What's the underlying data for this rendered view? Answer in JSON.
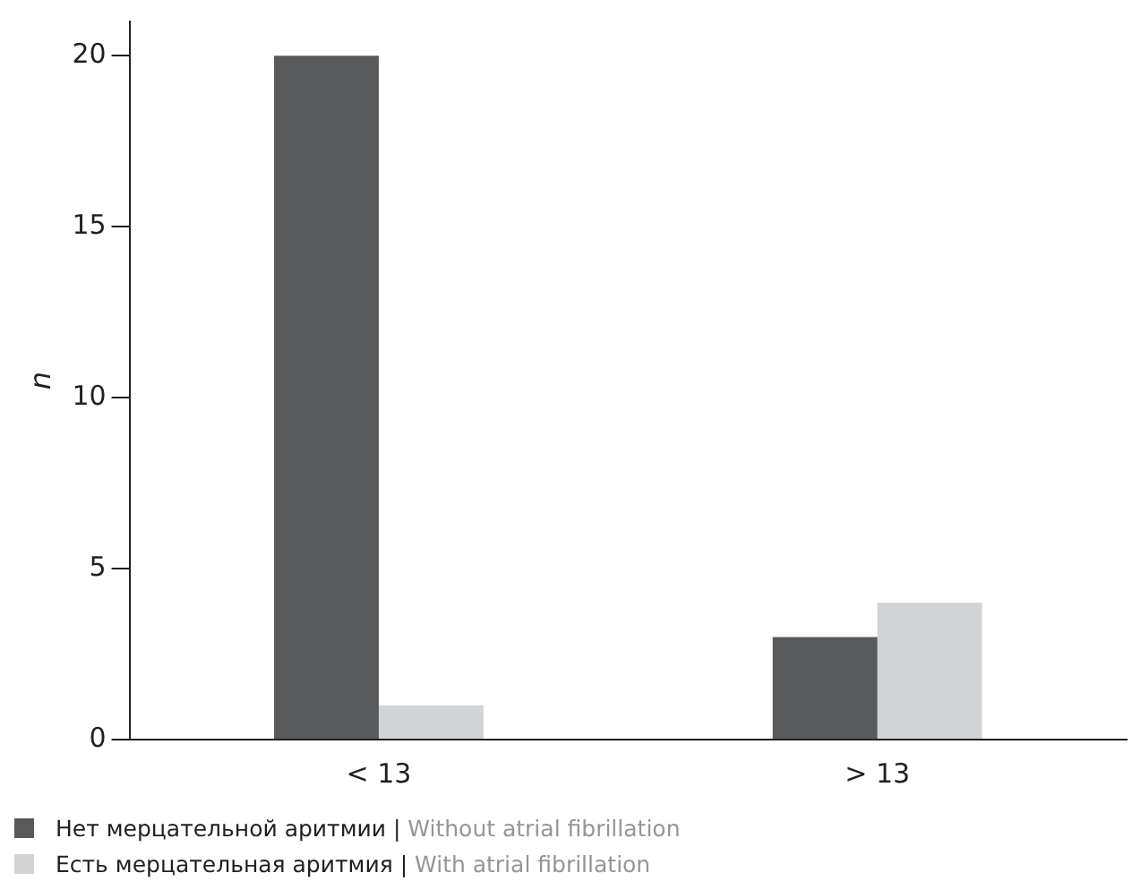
{
  "chart_data": {
    "type": "bar",
    "ylabel": "n",
    "categories": [
      "< 13",
      "> 13"
    ],
    "series": [
      {
        "name": "Нет мерцательной аритмии | Without atrial fibrillation",
        "color": "#58595b",
        "values": [
          20,
          3
        ]
      },
      {
        "name": "Есть мерцательная аритмия | With atrial fibrillation",
        "color": "#d1d3d4",
        "values": [
          1,
          4
        ]
      }
    ],
    "ylim": [
      0,
      21
    ],
    "yticks": [
      0,
      5,
      10,
      15,
      20
    ],
    "grid": false,
    "legend": "bottom left"
  }
}
